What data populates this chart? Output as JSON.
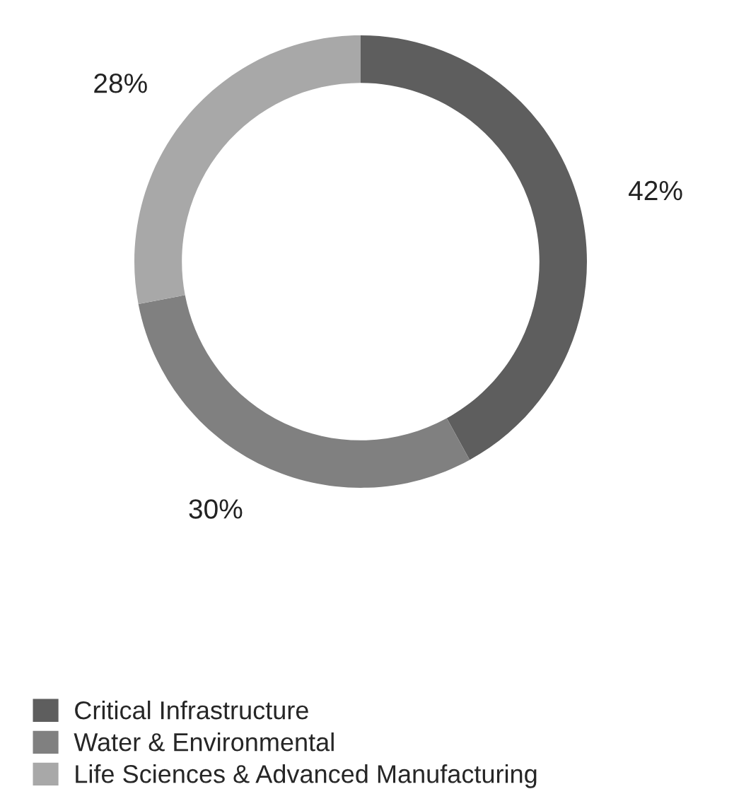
{
  "chart_data": {
    "type": "donut",
    "categories": [
      "Critical Infrastructure",
      "Water & Environmental",
      "Life Sciences & Advanced Manufacturing"
    ],
    "values": [
      42,
      30,
      28
    ],
    "colors": [
      "#5e5e5e",
      "#808080",
      "#a8a8a8"
    ],
    "value_labels": [
      "42%",
      "30%",
      "28%"
    ],
    "legend": "bottom left"
  }
}
